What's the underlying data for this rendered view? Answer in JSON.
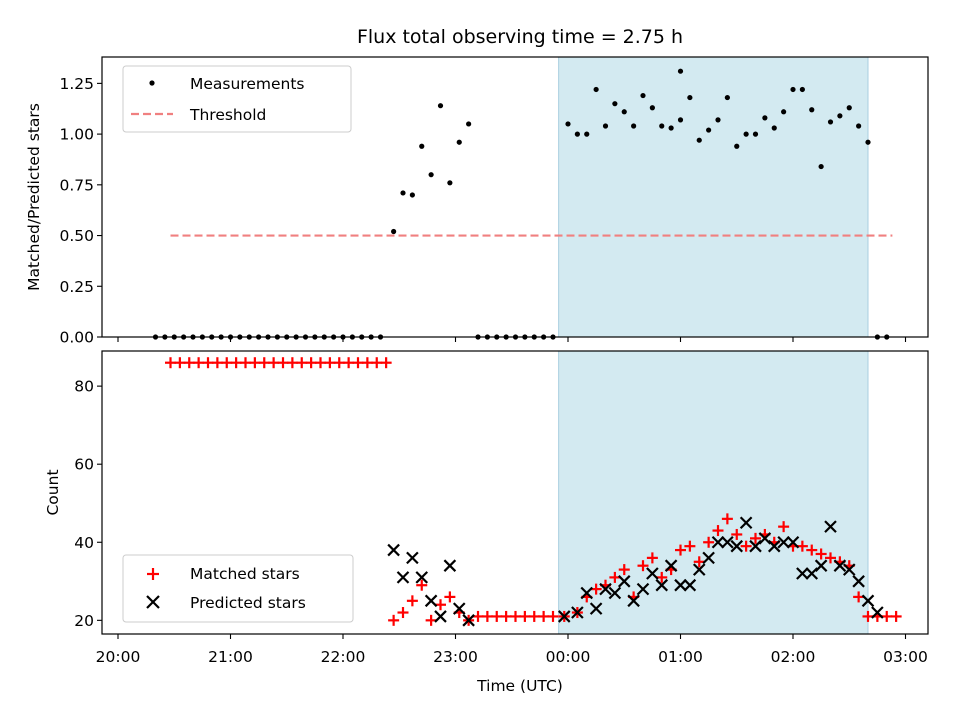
{
  "chart_data": {
    "type": "scatter",
    "title": "Flux total observing time = 2.75 h",
    "xlabel": "Time (UTC)",
    "x_ticks": [
      "20:00",
      "21:00",
      "22:00",
      "23:00",
      "00:00",
      "01:00",
      "02:00",
      "03:00"
    ],
    "highlight_span": [
      "23:55",
      "02:40"
    ],
    "highlight_color": "#d3eaf1",
    "top": {
      "ylabel": "Matched/Predicted stars",
      "ylim": [
        0,
        1.38
      ],
      "yticks": [
        "0.00",
        "0.25",
        "0.50",
        "0.75",
        "1.00",
        "1.25"
      ],
      "legend_position": "upper left",
      "series": [
        {
          "name": "Measurements",
          "color": "#000000",
          "marker": "dot",
          "points": [
            [
              "20:20",
              0
            ],
            [
              "20:25",
              0
            ],
            [
              "20:30",
              0
            ],
            [
              "20:35",
              0
            ],
            [
              "20:40",
              0
            ],
            [
              "20:45",
              0
            ],
            [
              "20:50",
              0
            ],
            [
              "20:55",
              0
            ],
            [
              "21:00",
              0
            ],
            [
              "21:05",
              0
            ],
            [
              "21:10",
              0
            ],
            [
              "21:15",
              0
            ],
            [
              "21:20",
              0
            ],
            [
              "21:25",
              0
            ],
            [
              "21:30",
              0
            ],
            [
              "21:35",
              0
            ],
            [
              "21:40",
              0
            ],
            [
              "21:45",
              0
            ],
            [
              "21:50",
              0
            ],
            [
              "21:55",
              0
            ],
            [
              "22:00",
              0
            ],
            [
              "22:05",
              0
            ],
            [
              "22:10",
              0
            ],
            [
              "22:15",
              0
            ],
            [
              "22:20",
              0
            ],
            [
              "22:27",
              0.52
            ],
            [
              "22:32",
              0.71
            ],
            [
              "22:37",
              0.7
            ],
            [
              "22:42",
              0.94
            ],
            [
              "22:47",
              0.8
            ],
            [
              "22:52",
              1.14
            ],
            [
              "22:57",
              0.76
            ],
            [
              "23:02",
              0.96
            ],
            [
              "23:07",
              1.05
            ],
            [
              "23:12",
              0
            ],
            [
              "23:17",
              0
            ],
            [
              "23:22",
              0
            ],
            [
              "23:27",
              0
            ],
            [
              "23:32",
              0
            ],
            [
              "23:37",
              0
            ],
            [
              "23:42",
              0
            ],
            [
              "23:47",
              0
            ],
            [
              "23:52",
              0
            ],
            [
              "00:00",
              1.05
            ],
            [
              "00:05",
              1.0
            ],
            [
              "00:10",
              1.0
            ],
            [
              "00:15",
              1.22
            ],
            [
              "00:20",
              1.04
            ],
            [
              "00:25",
              1.15
            ],
            [
              "00:30",
              1.11
            ],
            [
              "00:35",
              1.04
            ],
            [
              "00:40",
              1.19
            ],
            [
              "00:45",
              1.13
            ],
            [
              "00:50",
              1.04
            ],
            [
              "00:55",
              1.03
            ],
            [
              "01:00",
              1.07
            ],
            [
              "01:00",
              1.31
            ],
            [
              "01:05",
              1.18
            ],
            [
              "01:10",
              0.97
            ],
            [
              "01:15",
              1.02
            ],
            [
              "01:20",
              1.07
            ],
            [
              "01:25",
              1.18
            ],
            [
              "01:30",
              0.94
            ],
            [
              "01:35",
              1.0
            ],
            [
              "01:40",
              1.0
            ],
            [
              "01:45",
              1.08
            ],
            [
              "01:50",
              1.03
            ],
            [
              "01:55",
              1.11
            ],
            [
              "02:00",
              1.22
            ],
            [
              "02:05",
              1.22
            ],
            [
              "02:10",
              1.12
            ],
            [
              "02:15",
              0.84
            ],
            [
              "02:20",
              1.06
            ],
            [
              "02:25",
              1.09
            ],
            [
              "02:30",
              1.13
            ],
            [
              "02:35",
              1.04
            ],
            [
              "02:40",
              0.96
            ],
            [
              "02:45",
              0
            ],
            [
              "02:50",
              0
            ]
          ]
        },
        {
          "name": "Threshold",
          "color": "#f08080",
          "style": "dashed",
          "x_range": [
            "20:28",
            "02:53"
          ],
          "y": 0.5
        }
      ]
    },
    "bottom": {
      "ylabel": "Count",
      "ylim": [
        16.5,
        89
      ],
      "yticks": [
        "20",
        "40",
        "60",
        "80"
      ],
      "legend_position": "lower left",
      "series": [
        {
          "name": "Matched stars",
          "color": "#ff0000",
          "marker": "plus",
          "points": [
            [
              "20:28",
              86
            ],
            [
              "20:33",
              86
            ],
            [
              "20:38",
              86
            ],
            [
              "20:43",
              86
            ],
            [
              "20:48",
              86
            ],
            [
              "20:53",
              86
            ],
            [
              "20:58",
              86
            ],
            [
              "21:03",
              86
            ],
            [
              "21:08",
              86
            ],
            [
              "21:13",
              86
            ],
            [
              "21:18",
              86
            ],
            [
              "21:23",
              86
            ],
            [
              "21:28",
              86
            ],
            [
              "21:33",
              86
            ],
            [
              "21:38",
              86
            ],
            [
              "21:43",
              86
            ],
            [
              "21:48",
              86
            ],
            [
              "21:53",
              86
            ],
            [
              "21:58",
              86
            ],
            [
              "22:03",
              86
            ],
            [
              "22:08",
              86
            ],
            [
              "22:13",
              86
            ],
            [
              "22:18",
              86
            ],
            [
              "22:23",
              86
            ],
            [
              "22:27",
              20
            ],
            [
              "22:32",
              22
            ],
            [
              "22:37",
              25
            ],
            [
              "22:42",
              29
            ],
            [
              "22:47",
              20
            ],
            [
              "22:52",
              24
            ],
            [
              "22:57",
              26
            ],
            [
              "23:02",
              22
            ],
            [
              "23:07",
              20
            ],
            [
              "23:12",
              21
            ],
            [
              "23:17",
              21
            ],
            [
              "23:22",
              21
            ],
            [
              "23:27",
              21
            ],
            [
              "23:32",
              21
            ],
            [
              "23:37",
              21
            ],
            [
              "23:42",
              21
            ],
            [
              "23:47",
              21
            ],
            [
              "23:52",
              21
            ],
            [
              "23:58",
              21
            ],
            [
              "00:05",
              22
            ],
            [
              "00:10",
              26
            ],
            [
              "00:15",
              28
            ],
            [
              "00:20",
              29
            ],
            [
              "00:25",
              31
            ],
            [
              "00:30",
              33
            ],
            [
              "00:35",
              26
            ],
            [
              "00:40",
              34
            ],
            [
              "00:45",
              36
            ],
            [
              "00:50",
              31
            ],
            [
              "00:55",
              33
            ],
            [
              "01:00",
              38
            ],
            [
              "01:05",
              39
            ],
            [
              "01:10",
              35
            ],
            [
              "01:15",
              40
            ],
            [
              "01:20",
              43
            ],
            [
              "01:25",
              46
            ],
            [
              "01:30",
              42
            ],
            [
              "01:35",
              39
            ],
            [
              "01:40",
              41
            ],
            [
              "01:45",
              42
            ],
            [
              "01:50",
              40
            ],
            [
              "01:55",
              44
            ],
            [
              "02:00",
              39
            ],
            [
              "02:05",
              39
            ],
            [
              "02:10",
              38
            ],
            [
              "02:15",
              37
            ],
            [
              "02:20",
              36
            ],
            [
              "02:25",
              35
            ],
            [
              "02:30",
              34
            ],
            [
              "02:35",
              26
            ],
            [
              "02:40",
              21
            ],
            [
              "02:45",
              21
            ],
            [
              "02:50",
              21
            ],
            [
              "02:55",
              21
            ]
          ]
        },
        {
          "name": "Predicted stars",
          "color": "#000000",
          "marker": "x",
          "points": [
            [
              "22:27",
              38
            ],
            [
              "22:32",
              31
            ],
            [
              "22:37",
              36
            ],
            [
              "22:42",
              31
            ],
            [
              "22:47",
              25
            ],
            [
              "22:52",
              21
            ],
            [
              "22:57",
              34
            ],
            [
              "23:02",
              23
            ],
            [
              "23:07",
              20
            ],
            [
              "23:58",
              21
            ],
            [
              "00:05",
              22
            ],
            [
              "00:10",
              27
            ],
            [
              "00:15",
              23
            ],
            [
              "00:20",
              28
            ],
            [
              "00:25",
              27
            ],
            [
              "00:30",
              30
            ],
            [
              "00:35",
              25
            ],
            [
              "00:40",
              28
            ],
            [
              "00:45",
              32
            ],
            [
              "00:50",
              29
            ],
            [
              "00:55",
              34
            ],
            [
              "01:00",
              29
            ],
            [
              "01:05",
              29
            ],
            [
              "01:10",
              33
            ],
            [
              "01:15",
              36
            ],
            [
              "01:20",
              40
            ],
            [
              "01:25",
              40
            ],
            [
              "01:30",
              39
            ],
            [
              "01:35",
              45
            ],
            [
              "01:40",
              39
            ],
            [
              "01:45",
              41
            ],
            [
              "01:50",
              39
            ],
            [
              "01:55",
              40
            ],
            [
              "02:00",
              40
            ],
            [
              "02:05",
              32
            ],
            [
              "02:10",
              32
            ],
            [
              "02:15",
              34
            ],
            [
              "02:20",
              44
            ],
            [
              "02:25",
              34
            ],
            [
              "02:30",
              33
            ],
            [
              "02:35",
              30
            ],
            [
              "02:40",
              25
            ],
            [
              "02:45",
              22
            ]
          ]
        }
      ]
    }
  }
}
